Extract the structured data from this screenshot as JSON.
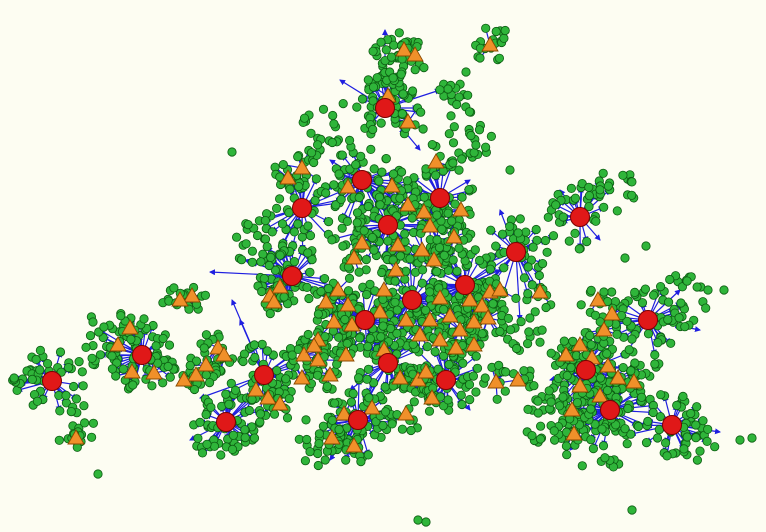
{
  "colors": {
    "background": "#fdfdf2",
    "edge": "#1f1fe0",
    "leaf_fill": "#2fb53a",
    "leaf_stroke": "#0d5c12",
    "relay_fill": "#f0902a",
    "relay_stroke": "#8a4a00",
    "hub_fill": "#e01818",
    "hub_stroke": "#7a0000"
  },
  "node_types": [
    "hub",
    "relay",
    "leaf"
  ],
  "icons": {
    "hub": "red-circle-node",
    "relay": "orange-triangle-node",
    "leaf": "green-circle-node"
  }
}
